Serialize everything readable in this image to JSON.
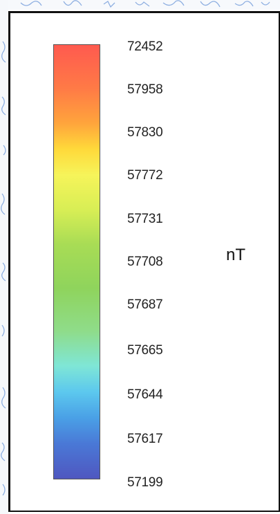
{
  "chart_data": {
    "type": "heatmap",
    "component": "colorbar",
    "orientation": "vertical",
    "unit": "nT",
    "tick_labels": [
      "72452",
      "57958",
      "57830",
      "57772",
      "57731",
      "57708",
      "57687",
      "57665",
      "57644",
      "57617",
      "57199"
    ],
    "values": [
      72452,
      57958,
      57830,
      57772,
      57731,
      57708,
      57687,
      57665,
      57644,
      57617,
      57199
    ],
    "range": [
      57199,
      72452
    ],
    "colormap": [
      "#ff5a4f",
      "#ff7a46",
      "#ffa43c",
      "#ffd93a",
      "#f6f45a",
      "#d8ee55",
      "#a8dc55",
      "#8fd45c",
      "#8fdc8a",
      "#7fe6d6",
      "#5cc8ee",
      "#4aa0e6",
      "#4a78d6",
      "#4f57c0"
    ],
    "colormap_order": "top-to-bottom"
  }
}
